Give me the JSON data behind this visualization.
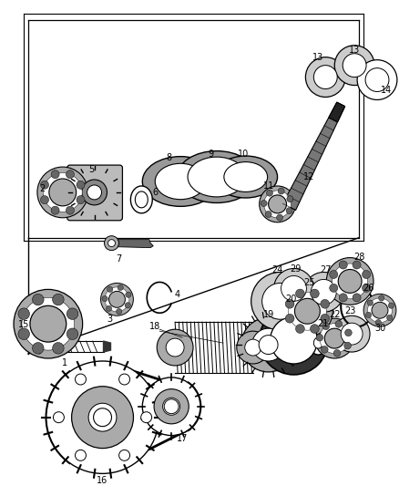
{
  "background_color": "#ffffff",
  "fig_width": 4.38,
  "fig_height": 5.33,
  "dpi": 100,
  "plane_color": "#888888",
  "part_color": "#555555",
  "light_gray": "#cccccc",
  "dark_gray": "#444444"
}
